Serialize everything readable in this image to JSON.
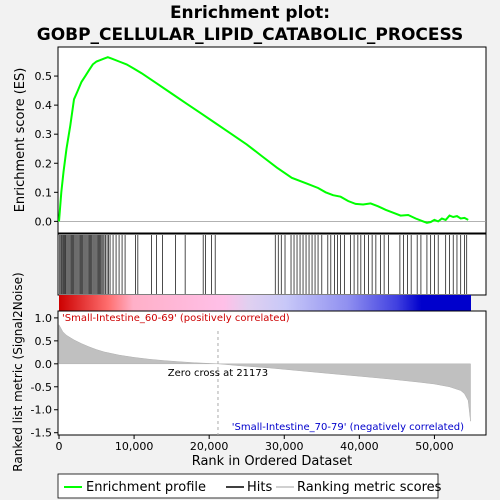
{
  "chart_data": {
    "type": "line",
    "title_line1": "Enrichment plot:",
    "title_line2": "GOBP_CELLULAR_LIPID_CATABOLIC_PROCESS",
    "top_panel": {
      "ylabel": "Enrichment score (ES)",
      "ylim": [
        -0.04,
        0.6
      ],
      "yticks": [
        "0.0",
        "0.1",
        "0.2",
        "0.3",
        "0.4",
        "0.5"
      ],
      "series": [
        {
          "name": "Enrichment profile",
          "color": "#00ff00",
          "x": [
            0,
            300,
            600,
            1000,
            1500,
            2000,
            2500,
            3000,
            3500,
            4000,
            4500,
            5000,
            5500,
            6000,
            6500,
            7000,
            8000,
            9000,
            10000,
            11000,
            13000,
            15000,
            17000,
            19000,
            21000,
            23000,
            25000,
            27000,
            29000,
            31000,
            33000,
            34500,
            35500,
            36500,
            37500,
            38500,
            39500,
            40500,
            41500,
            42500,
            43500,
            44500,
            45500,
            46500,
            47500,
            48500,
            49000,
            49500,
            50000,
            50500,
            51000,
            51500,
            52000,
            52500,
            53000,
            53500,
            54000,
            54500
          ],
          "y": [
            0.0,
            0.1,
            0.17,
            0.25,
            0.33,
            0.42,
            0.45,
            0.48,
            0.5,
            0.52,
            0.54,
            0.55,
            0.555,
            0.56,
            0.565,
            0.56,
            0.55,
            0.54,
            0.525,
            0.51,
            0.475,
            0.44,
            0.405,
            0.37,
            0.335,
            0.3,
            0.265,
            0.225,
            0.185,
            0.15,
            0.13,
            0.115,
            0.1,
            0.09,
            0.085,
            0.07,
            0.06,
            0.058,
            0.062,
            0.052,
            0.04,
            0.03,
            0.02,
            0.022,
            0.01,
            0.0,
            -0.005,
            -0.002,
            0.005,
            0.0,
            0.01,
            0.005,
            0.02,
            0.015,
            0.018,
            0.01,
            0.012,
            0.005
          ]
        }
      ]
    },
    "hits_panel": {
      "hit_positions": [
        100,
        250,
        380,
        520,
        650,
        780,
        900,
        1050,
        1200,
        1350,
        1500,
        1650,
        1800,
        1950,
        2100,
        2250,
        2400,
        2550,
        2700,
        2850,
        3000,
        3150,
        3300,
        3450,
        3600,
        3750,
        3900,
        4050,
        4200,
        4350,
        4500,
        4650,
        4800,
        4950,
        5100,
        5250,
        5400,
        5550,
        5700,
        5850,
        6000,
        6200,
        6400,
        6600,
        6800,
        7200,
        7600,
        8000,
        8400,
        8800,
        10200,
        10500,
        12300,
        13000,
        13800,
        15500,
        16800,
        19200,
        19500,
        20300,
        20800,
        28800,
        29200,
        29600,
        30100,
        30900,
        31300,
        31700,
        32100,
        32500,
        32900,
        33300,
        33700,
        34100,
        34500,
        35000,
        35800,
        36200,
        36700,
        37100,
        37500,
        38000,
        38800,
        39300,
        39800,
        40200,
        40700,
        41200,
        41700,
        42200,
        42800,
        43300,
        43900,
        45400,
        45900,
        46400,
        46900,
        47700,
        48200,
        49000,
        49500,
        50000,
        50500,
        51500,
        52000,
        52500,
        53000,
        53500,
        54000,
        54300
      ]
    },
    "metric_panel": {
      "ylabel": "Ranked list metric (Signal2Noise)",
      "ylim": [
        -1.55,
        1.15
      ],
      "yticks": [
        "-1.5",
        "-1.0",
        "-0.5",
        "0.0",
        "0.5",
        "1.0"
      ],
      "zero_cross_label": "Zero cross at 21173",
      "zero_cross": 21173,
      "x": [
        0,
        500,
        1000,
        2000,
        3000,
        4000,
        5000,
        6000,
        8000,
        10000,
        12000,
        14000,
        16000,
        18000,
        20000,
        21173,
        24000,
        28000,
        32000,
        36000,
        40000,
        44000,
        48000,
        50000,
        52000,
        53500,
        54000,
        54500,
        54800
      ],
      "values": [
        0.85,
        0.7,
        0.62,
        0.52,
        0.44,
        0.37,
        0.31,
        0.26,
        0.19,
        0.14,
        0.1,
        0.07,
        0.045,
        0.025,
        0.01,
        0.0,
        -0.04,
        -0.09,
        -0.15,
        -0.21,
        -0.27,
        -0.33,
        -0.4,
        -0.44,
        -0.5,
        -0.58,
        -0.65,
        -0.8,
        -1.25
      ]
    },
    "xlabel": "Rank in Ordered Dataset",
    "xlim": [
      0,
      57000
    ],
    "xticks": [
      "0",
      "10,000",
      "20,000",
      "30,000",
      "40,000",
      "50,000"
    ],
    "xtick_values": [
      0,
      10000,
      20000,
      30000,
      40000,
      50000
    ],
    "positive_label": "'Small-Intestine_60-69' (positively correlated)",
    "negative_label": "'Small-Intestine_70-79' (negatively correlated)",
    "legend": [
      "Enrichment profile",
      "Hits",
      "Ranking metric scores"
    ],
    "colors": {
      "profile": "#00ff00",
      "positive_text": "#cc0000",
      "negative_text": "#0000cc",
      "metric_fill": "#c0c0c0"
    }
  }
}
